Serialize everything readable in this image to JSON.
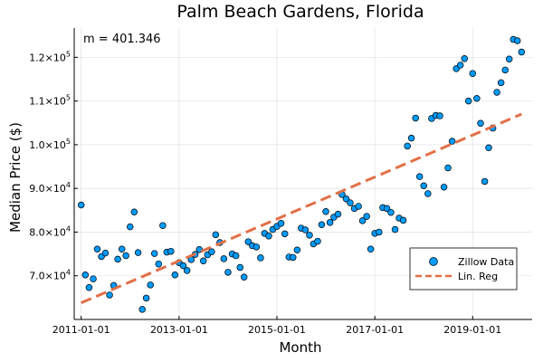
{
  "chart_data": {
    "type": "scatter",
    "title": "Palm Beach Gardens, Florida",
    "xlabel": "Month",
    "ylabel": "Median Price ($)",
    "annotation": "m = 401.346",
    "xlim": [
      "2010-11-10",
      "2020-03-20"
    ],
    "ylim": [
      60000,
      126700
    ],
    "grid": true,
    "legend_position": "bottom-right",
    "xticks": [
      {
        "value": "2011-01-01",
        "label": "2011-01-01"
      },
      {
        "value": "2013-01-01",
        "label": "2013-01-01"
      },
      {
        "value": "2015-01-01",
        "label": "2015-01-01"
      },
      {
        "value": "2017-01-01",
        "label": "2017-01-01"
      },
      {
        "value": "2019-01-01",
        "label": "2019-01-01"
      }
    ],
    "yticks": [
      {
        "value": 70000,
        "mantissa": "7.0",
        "exp": "4"
      },
      {
        "value": 80000,
        "mantissa": "8.0",
        "exp": "4"
      },
      {
        "value": 90000,
        "mantissa": "9.0",
        "exp": "4"
      },
      {
        "value": 100000,
        "mantissa": "1.0",
        "exp": "5"
      },
      {
        "value": 110000,
        "mantissa": "1.1",
        "exp": "5"
      },
      {
        "value": 120000,
        "mantissa": "1.2",
        "exp": "5"
      }
    ],
    "series": [
      {
        "name": "Zillow Data",
        "kind": "scatter",
        "color": "#009AFA",
        "points": [
          [
            "2011-01-01",
            86200
          ],
          [
            "2011-02-01",
            70200
          ],
          [
            "2011-03-01",
            67300
          ],
          [
            "2011-04-01",
            69300
          ],
          [
            "2011-05-01",
            76100
          ],
          [
            "2011-06-01",
            74400
          ],
          [
            "2011-07-01",
            75200
          ],
          [
            "2011-08-01",
            65600
          ],
          [
            "2011-09-01",
            67800
          ],
          [
            "2011-10-01",
            73800
          ],
          [
            "2011-11-01",
            76100
          ],
          [
            "2011-12-01",
            74600
          ],
          [
            "2012-01-01",
            81200
          ],
          [
            "2012-02-01",
            84600
          ],
          [
            "2012-03-01",
            75300
          ],
          [
            "2012-04-01",
            62300
          ],
          [
            "2012-05-01",
            64900
          ],
          [
            "2012-06-01",
            67900
          ],
          [
            "2012-07-01",
            75100
          ],
          [
            "2012-08-01",
            72700
          ],
          [
            "2012-09-01",
            81500
          ],
          [
            "2012-10-01",
            75400
          ],
          [
            "2012-11-01",
            75600
          ],
          [
            "2012-12-01",
            70200
          ],
          [
            "2013-01-01",
            73000
          ],
          [
            "2013-02-01",
            72300
          ],
          [
            "2013-03-01",
            71200
          ],
          [
            "2013-04-01",
            73700
          ],
          [
            "2013-05-01",
            74900
          ],
          [
            "2013-06-01",
            76000
          ],
          [
            "2013-07-01",
            73400
          ],
          [
            "2013-08-01",
            74800
          ],
          [
            "2013-09-01",
            75500
          ],
          [
            "2013-10-01",
            79400
          ],
          [
            "2013-11-01",
            77600
          ],
          [
            "2013-12-01",
            73900
          ],
          [
            "2014-01-01",
            70800
          ],
          [
            "2014-02-01",
            75000
          ],
          [
            "2014-03-01",
            74600
          ],
          [
            "2014-04-01",
            71900
          ],
          [
            "2014-05-01",
            69700
          ],
          [
            "2014-06-01",
            77800
          ],
          [
            "2014-07-01",
            76900
          ],
          [
            "2014-08-01",
            76600
          ],
          [
            "2014-09-01",
            74100
          ],
          [
            "2014-10-01",
            79700
          ],
          [
            "2014-11-01",
            79100
          ],
          [
            "2014-12-01",
            80600
          ],
          [
            "2015-01-01",
            81300
          ],
          [
            "2015-02-01",
            82000
          ],
          [
            "2015-03-01",
            79600
          ],
          [
            "2015-04-01",
            74300
          ],
          [
            "2015-05-01",
            74200
          ],
          [
            "2015-06-01",
            75900
          ],
          [
            "2015-07-01",
            80900
          ],
          [
            "2015-08-01",
            80500
          ],
          [
            "2015-09-01",
            79300
          ],
          [
            "2015-10-01",
            77300
          ],
          [
            "2015-11-01",
            77900
          ],
          [
            "2015-12-01",
            81700
          ],
          [
            "2016-01-01",
            84700
          ],
          [
            "2016-02-01",
            82200
          ],
          [
            "2016-03-01",
            83400
          ],
          [
            "2016-04-01",
            84100
          ],
          [
            "2016-05-01",
            88600
          ],
          [
            "2016-06-01",
            87600
          ],
          [
            "2016-07-01",
            86700
          ],
          [
            "2016-08-01",
            85400
          ],
          [
            "2016-09-01",
            85900
          ],
          [
            "2016-10-01",
            82600
          ],
          [
            "2016-11-01",
            83600
          ],
          [
            "2016-12-01",
            76100
          ],
          [
            "2017-01-01",
            79700
          ],
          [
            "2017-02-01",
            80000
          ],
          [
            "2017-03-01",
            85600
          ],
          [
            "2017-04-01",
            85400
          ],
          [
            "2017-05-01",
            84500
          ],
          [
            "2017-06-01",
            80600
          ],
          [
            "2017-07-01",
            83200
          ],
          [
            "2017-08-01",
            82700
          ],
          [
            "2017-09-01",
            99700
          ],
          [
            "2017-10-01",
            101500
          ],
          [
            "2017-11-01",
            106100
          ],
          [
            "2017-12-01",
            92700
          ],
          [
            "2018-01-01",
            90600
          ],
          [
            "2018-02-01",
            88800
          ],
          [
            "2018-03-01",
            106000
          ],
          [
            "2018-04-01",
            106700
          ],
          [
            "2018-05-01",
            106600
          ],
          [
            "2018-06-01",
            90300
          ],
          [
            "2018-07-01",
            94700
          ],
          [
            "2018-08-01",
            100800
          ],
          [
            "2018-09-01",
            117400
          ],
          [
            "2018-10-01",
            118200
          ],
          [
            "2018-11-01",
            119700
          ],
          [
            "2018-12-01",
            110000
          ],
          [
            "2019-01-01",
            116300
          ],
          [
            "2019-02-01",
            110600
          ],
          [
            "2019-03-01",
            104900
          ],
          [
            "2019-04-01",
            91600
          ],
          [
            "2019-05-01",
            99300
          ],
          [
            "2019-06-01",
            103800
          ],
          [
            "2019-07-01",
            112000
          ],
          [
            "2019-08-01",
            114200
          ],
          [
            "2019-09-01",
            117100
          ],
          [
            "2019-10-01",
            119600
          ],
          [
            "2019-11-01",
            124100
          ],
          [
            "2019-12-01",
            123800
          ],
          [
            "2020-01-01",
            121200
          ]
        ]
      },
      {
        "name": "Lin. Reg",
        "kind": "line",
        "style": "dashed",
        "color": "#E26F46",
        "points": [
          [
            "2011-01-01",
            63800
          ],
          [
            "2020-01-01",
            107000
          ]
        ]
      }
    ]
  }
}
